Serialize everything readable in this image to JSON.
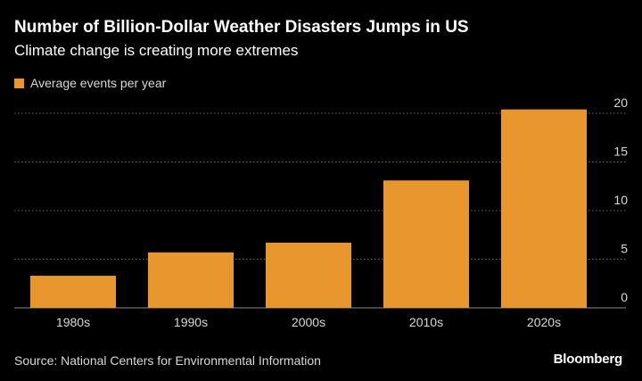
{
  "header": {
    "title": "Number of Billion-Dollar Weather Disasters Jumps in US",
    "subtitle": "Climate change is creating more extremes"
  },
  "legend": {
    "label": "Average events per year",
    "color": "#e8962e"
  },
  "footer": {
    "source": "Source: National Centers for Environmental Information",
    "brand": "Bloomberg"
  },
  "chart_data": {
    "type": "bar",
    "categories": [
      "1980s",
      "1990s",
      "2000s",
      "2010s",
      "2020s"
    ],
    "series": [
      {
        "name": "Average events per year",
        "values": [
          3.3,
          5.7,
          6.7,
          13.1,
          20.4
        ]
      }
    ],
    "yticks": [
      0,
      5,
      10,
      15,
      20
    ],
    "ylim": [
      0,
      20
    ],
    "yaxis_position": "right",
    "grid": "horizontal dotted",
    "legend_position": "top-left",
    "bar_color": "#e8962e",
    "gridline_color": "#8a8a8a",
    "axis_text_color": "#d9d9d9"
  }
}
